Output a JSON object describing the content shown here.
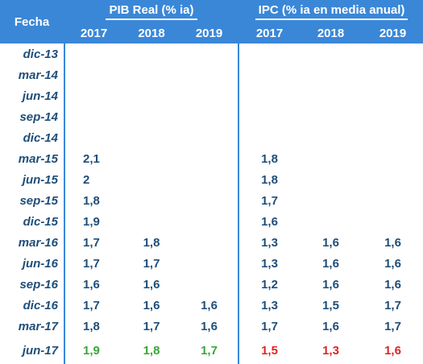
{
  "header": {
    "fecha": "Fecha",
    "pib_title": "PIB Real  (% ia)",
    "ipc_title": "IPC (% ia en media anual)",
    "years": [
      "2017",
      "2018",
      "2019"
    ]
  },
  "rows": [
    {
      "date": "dic-13",
      "pib": [
        "",
        "",
        ""
      ],
      "ipc": [
        "",
        "",
        ""
      ]
    },
    {
      "date": "mar-14",
      "pib": [
        "",
        "",
        ""
      ],
      "ipc": [
        "",
        "",
        ""
      ]
    },
    {
      "date": "jun-14",
      "pib": [
        "",
        "",
        ""
      ],
      "ipc": [
        "",
        "",
        ""
      ]
    },
    {
      "date": "sep-14",
      "pib": [
        "",
        "",
        ""
      ],
      "ipc": [
        "",
        "",
        ""
      ]
    },
    {
      "date": "dic-14",
      "pib": [
        "",
        "",
        ""
      ],
      "ipc": [
        "",
        "",
        ""
      ]
    },
    {
      "date": "mar-15",
      "pib": [
        "2,1",
        "",
        ""
      ],
      "ipc": [
        "1,8",
        "",
        ""
      ]
    },
    {
      "date": "jun-15",
      "pib": [
        "2",
        "",
        ""
      ],
      "ipc": [
        "1,8",
        "",
        ""
      ]
    },
    {
      "date": "sep-15",
      "pib": [
        "1,8",
        "",
        ""
      ],
      "ipc": [
        "1,7",
        "",
        ""
      ]
    },
    {
      "date": "dic-15",
      "pib": [
        "1,9",
        "",
        ""
      ],
      "ipc": [
        "1,6",
        "",
        ""
      ]
    },
    {
      "date": "mar-16",
      "pib": [
        "1,7",
        "1,8",
        ""
      ],
      "ipc": [
        "1,3",
        "1,6",
        "1,6"
      ]
    },
    {
      "date": "jun-16",
      "pib": [
        "1,7",
        "1,7",
        ""
      ],
      "ipc": [
        "1,3",
        "1,6",
        "1,6"
      ]
    },
    {
      "date": "sep-16",
      "pib": [
        "1,6",
        "1,6",
        ""
      ],
      "ipc": [
        "1,2",
        "1,6",
        "1,6"
      ]
    },
    {
      "date": "dic-16",
      "pib": [
        "1,7",
        "1,6",
        "1,6"
      ],
      "ipc": [
        "1,3",
        "1,5",
        "1,7"
      ]
    },
    {
      "date": "mar-17",
      "pib": [
        "1,8",
        "1,7",
        "1,6"
      ],
      "ipc": [
        "1,7",
        "1,6",
        "1,7"
      ]
    },
    {
      "date": "jun-17",
      "pib": [
        "1,9",
        "1,8",
        "1,7"
      ],
      "ipc": [
        "1,5",
        "1,3",
        "1,6"
      ]
    }
  ],
  "colors": {
    "header_bg": "#3a87d8",
    "value_text": "#1f4e79",
    "pib_highlight": "#3aa537",
    "ipc_highlight": "#e02424"
  }
}
